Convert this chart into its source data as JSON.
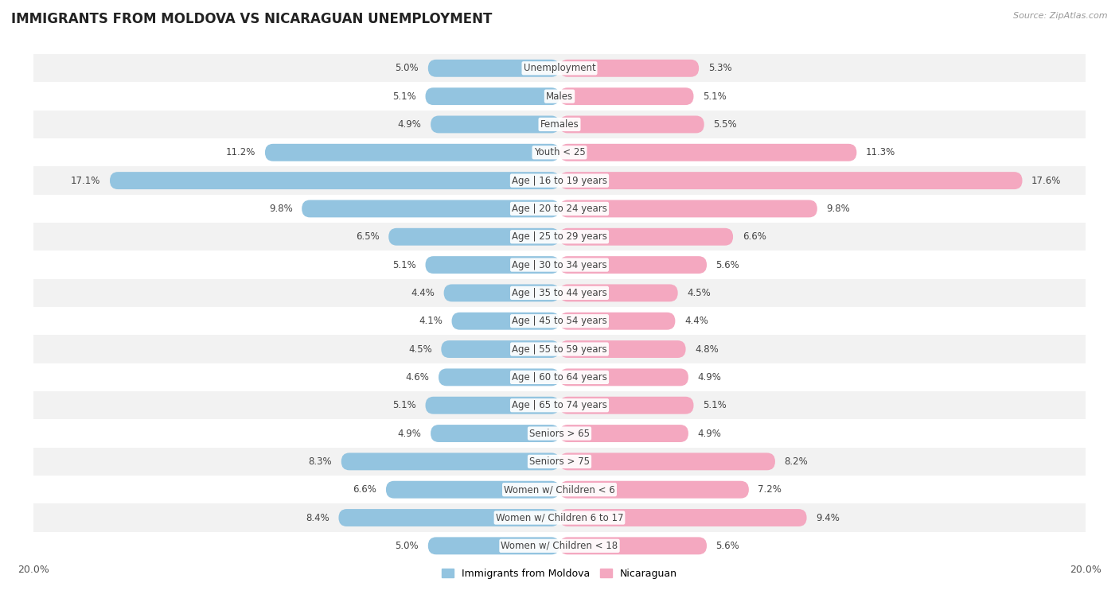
{
  "title": "IMMIGRANTS FROM MOLDOVA VS NICARAGUAN UNEMPLOYMENT",
  "source": "Source: ZipAtlas.com",
  "categories": [
    "Unemployment",
    "Males",
    "Females",
    "Youth < 25",
    "Age | 16 to 19 years",
    "Age | 20 to 24 years",
    "Age | 25 to 29 years",
    "Age | 30 to 34 years",
    "Age | 35 to 44 years",
    "Age | 45 to 54 years",
    "Age | 55 to 59 years",
    "Age | 60 to 64 years",
    "Age | 65 to 74 years",
    "Seniors > 65",
    "Seniors > 75",
    "Women w/ Children < 6",
    "Women w/ Children 6 to 17",
    "Women w/ Children < 18"
  ],
  "moldova_values": [
    5.0,
    5.1,
    4.9,
    11.2,
    17.1,
    9.8,
    6.5,
    5.1,
    4.4,
    4.1,
    4.5,
    4.6,
    5.1,
    4.9,
    8.3,
    6.6,
    8.4,
    5.0
  ],
  "nicaraguan_values": [
    5.3,
    5.1,
    5.5,
    11.3,
    17.6,
    9.8,
    6.6,
    5.6,
    4.5,
    4.4,
    4.8,
    4.9,
    5.1,
    4.9,
    8.2,
    7.2,
    9.4,
    5.6
  ],
  "moldova_color": "#93c4e0",
  "nicaraguan_color": "#f4a8c0",
  "background_row_even": "#f2f2f2",
  "background_row_odd": "#ffffff",
  "axis_limit": 20.0,
  "bar_height": 0.62,
  "label_fontsize": 8.5,
  "category_fontsize": 8.5,
  "title_fontsize": 12,
  "legend_labels": [
    "Immigrants from Moldova",
    "Nicaraguan"
  ]
}
